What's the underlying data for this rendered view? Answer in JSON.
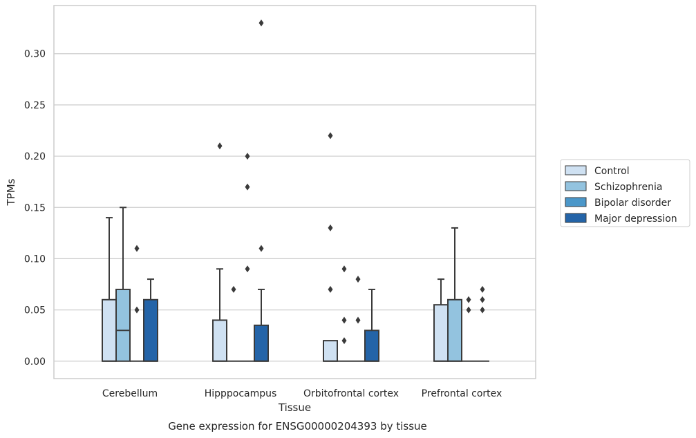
{
  "chart_data": {
    "type": "boxplot",
    "title": "",
    "caption": "Gene expression for ENSG00000204393 by tissue",
    "xlabel": "Tissue",
    "ylabel": "TPMs",
    "ylim": [
      -0.017,
      0.347
    ],
    "yticks": [
      0.0,
      0.05,
      0.1,
      0.15,
      0.2,
      0.25,
      0.3
    ],
    "ytick_labels": [
      "0.00",
      "0.05",
      "0.10",
      "0.15",
      "0.20",
      "0.25",
      "0.30"
    ],
    "grid": "horizontal",
    "legend_position": "right",
    "categories": [
      "Cerebellum",
      "Hipppocampus",
      "Orbitofrontal cortex",
      "Prefrontal cortex"
    ],
    "series": [
      {
        "name": "Control",
        "color": "#cfe1f2",
        "boxes": [
          {
            "q1": 0.0,
            "median": 0.0,
            "q3": 0.06,
            "whisker_low": 0.0,
            "whisker_high": 0.14,
            "outliers": []
          },
          {
            "q1": 0.0,
            "median": 0.0,
            "q3": 0.04,
            "whisker_low": 0.0,
            "whisker_high": 0.09,
            "outliers": [
              0.21
            ]
          },
          {
            "q1": 0.0,
            "median": 0.0,
            "q3": 0.02,
            "whisker_low": 0.0,
            "whisker_high": 0.02,
            "outliers": [
              0.22,
              0.13,
              0.07
            ]
          },
          {
            "q1": 0.0,
            "median": 0.0,
            "q3": 0.055,
            "whisker_low": 0.0,
            "whisker_high": 0.08,
            "outliers": []
          }
        ]
      },
      {
        "name": "Schizophrenia",
        "color": "#93c3df",
        "boxes": [
          {
            "q1": 0.0,
            "median": 0.03,
            "q3": 0.07,
            "whisker_low": 0.0,
            "whisker_high": 0.15,
            "outliers": []
          },
          {
            "q1": 0.0,
            "median": 0.0,
            "q3": 0.0,
            "whisker_low": 0.0,
            "whisker_high": 0.0,
            "outliers": [
              0.07
            ]
          },
          {
            "q1": 0.0,
            "median": 0.0,
            "q3": 0.0,
            "whisker_low": 0.0,
            "whisker_high": 0.0,
            "outliers": [
              0.09,
              0.04,
              0.02
            ]
          },
          {
            "q1": 0.0,
            "median": 0.0,
            "q3": 0.06,
            "whisker_low": 0.0,
            "whisker_high": 0.13,
            "outliers": []
          }
        ]
      },
      {
        "name": "Bipolar disorder",
        "color": "#4b97c9",
        "boxes": [
          {
            "q1": 0.0,
            "median": 0.0,
            "q3": 0.0,
            "whisker_low": 0.0,
            "whisker_high": 0.0,
            "outliers": [
              0.11,
              0.05
            ]
          },
          {
            "q1": 0.0,
            "median": 0.0,
            "q3": 0.0,
            "whisker_low": 0.0,
            "whisker_high": 0.0,
            "outliers": [
              0.2,
              0.17,
              0.09
            ]
          },
          {
            "q1": 0.0,
            "median": 0.0,
            "q3": 0.0,
            "whisker_low": 0.0,
            "whisker_high": 0.0,
            "outliers": [
              0.08,
              0.04
            ]
          },
          {
            "q1": 0.0,
            "median": 0.0,
            "q3": 0.0,
            "whisker_low": 0.0,
            "whisker_high": 0.0,
            "outliers": [
              0.06,
              0.05
            ]
          }
        ]
      },
      {
        "name": "Major depression",
        "color": "#2464a8",
        "boxes": [
          {
            "q1": 0.0,
            "median": 0.0,
            "q3": 0.06,
            "whisker_low": 0.0,
            "whisker_high": 0.08,
            "outliers": []
          },
          {
            "q1": 0.0,
            "median": 0.0,
            "q3": 0.035,
            "whisker_low": 0.0,
            "whisker_high": 0.07,
            "outliers": [
              0.33,
              0.11
            ]
          },
          {
            "q1": 0.0,
            "median": 0.0,
            "q3": 0.03,
            "whisker_low": 0.0,
            "whisker_high": 0.07,
            "outliers": []
          },
          {
            "q1": 0.0,
            "median": 0.0,
            "q3": 0.0,
            "whisker_low": 0.0,
            "whisker_high": 0.0,
            "outliers": [
              0.07,
              0.06,
              0.05
            ]
          }
        ]
      }
    ],
    "colors": {
      "line": "#3a3a3a",
      "grid": "#cccccc",
      "frame": "#cccccc",
      "text": "#262626"
    }
  }
}
